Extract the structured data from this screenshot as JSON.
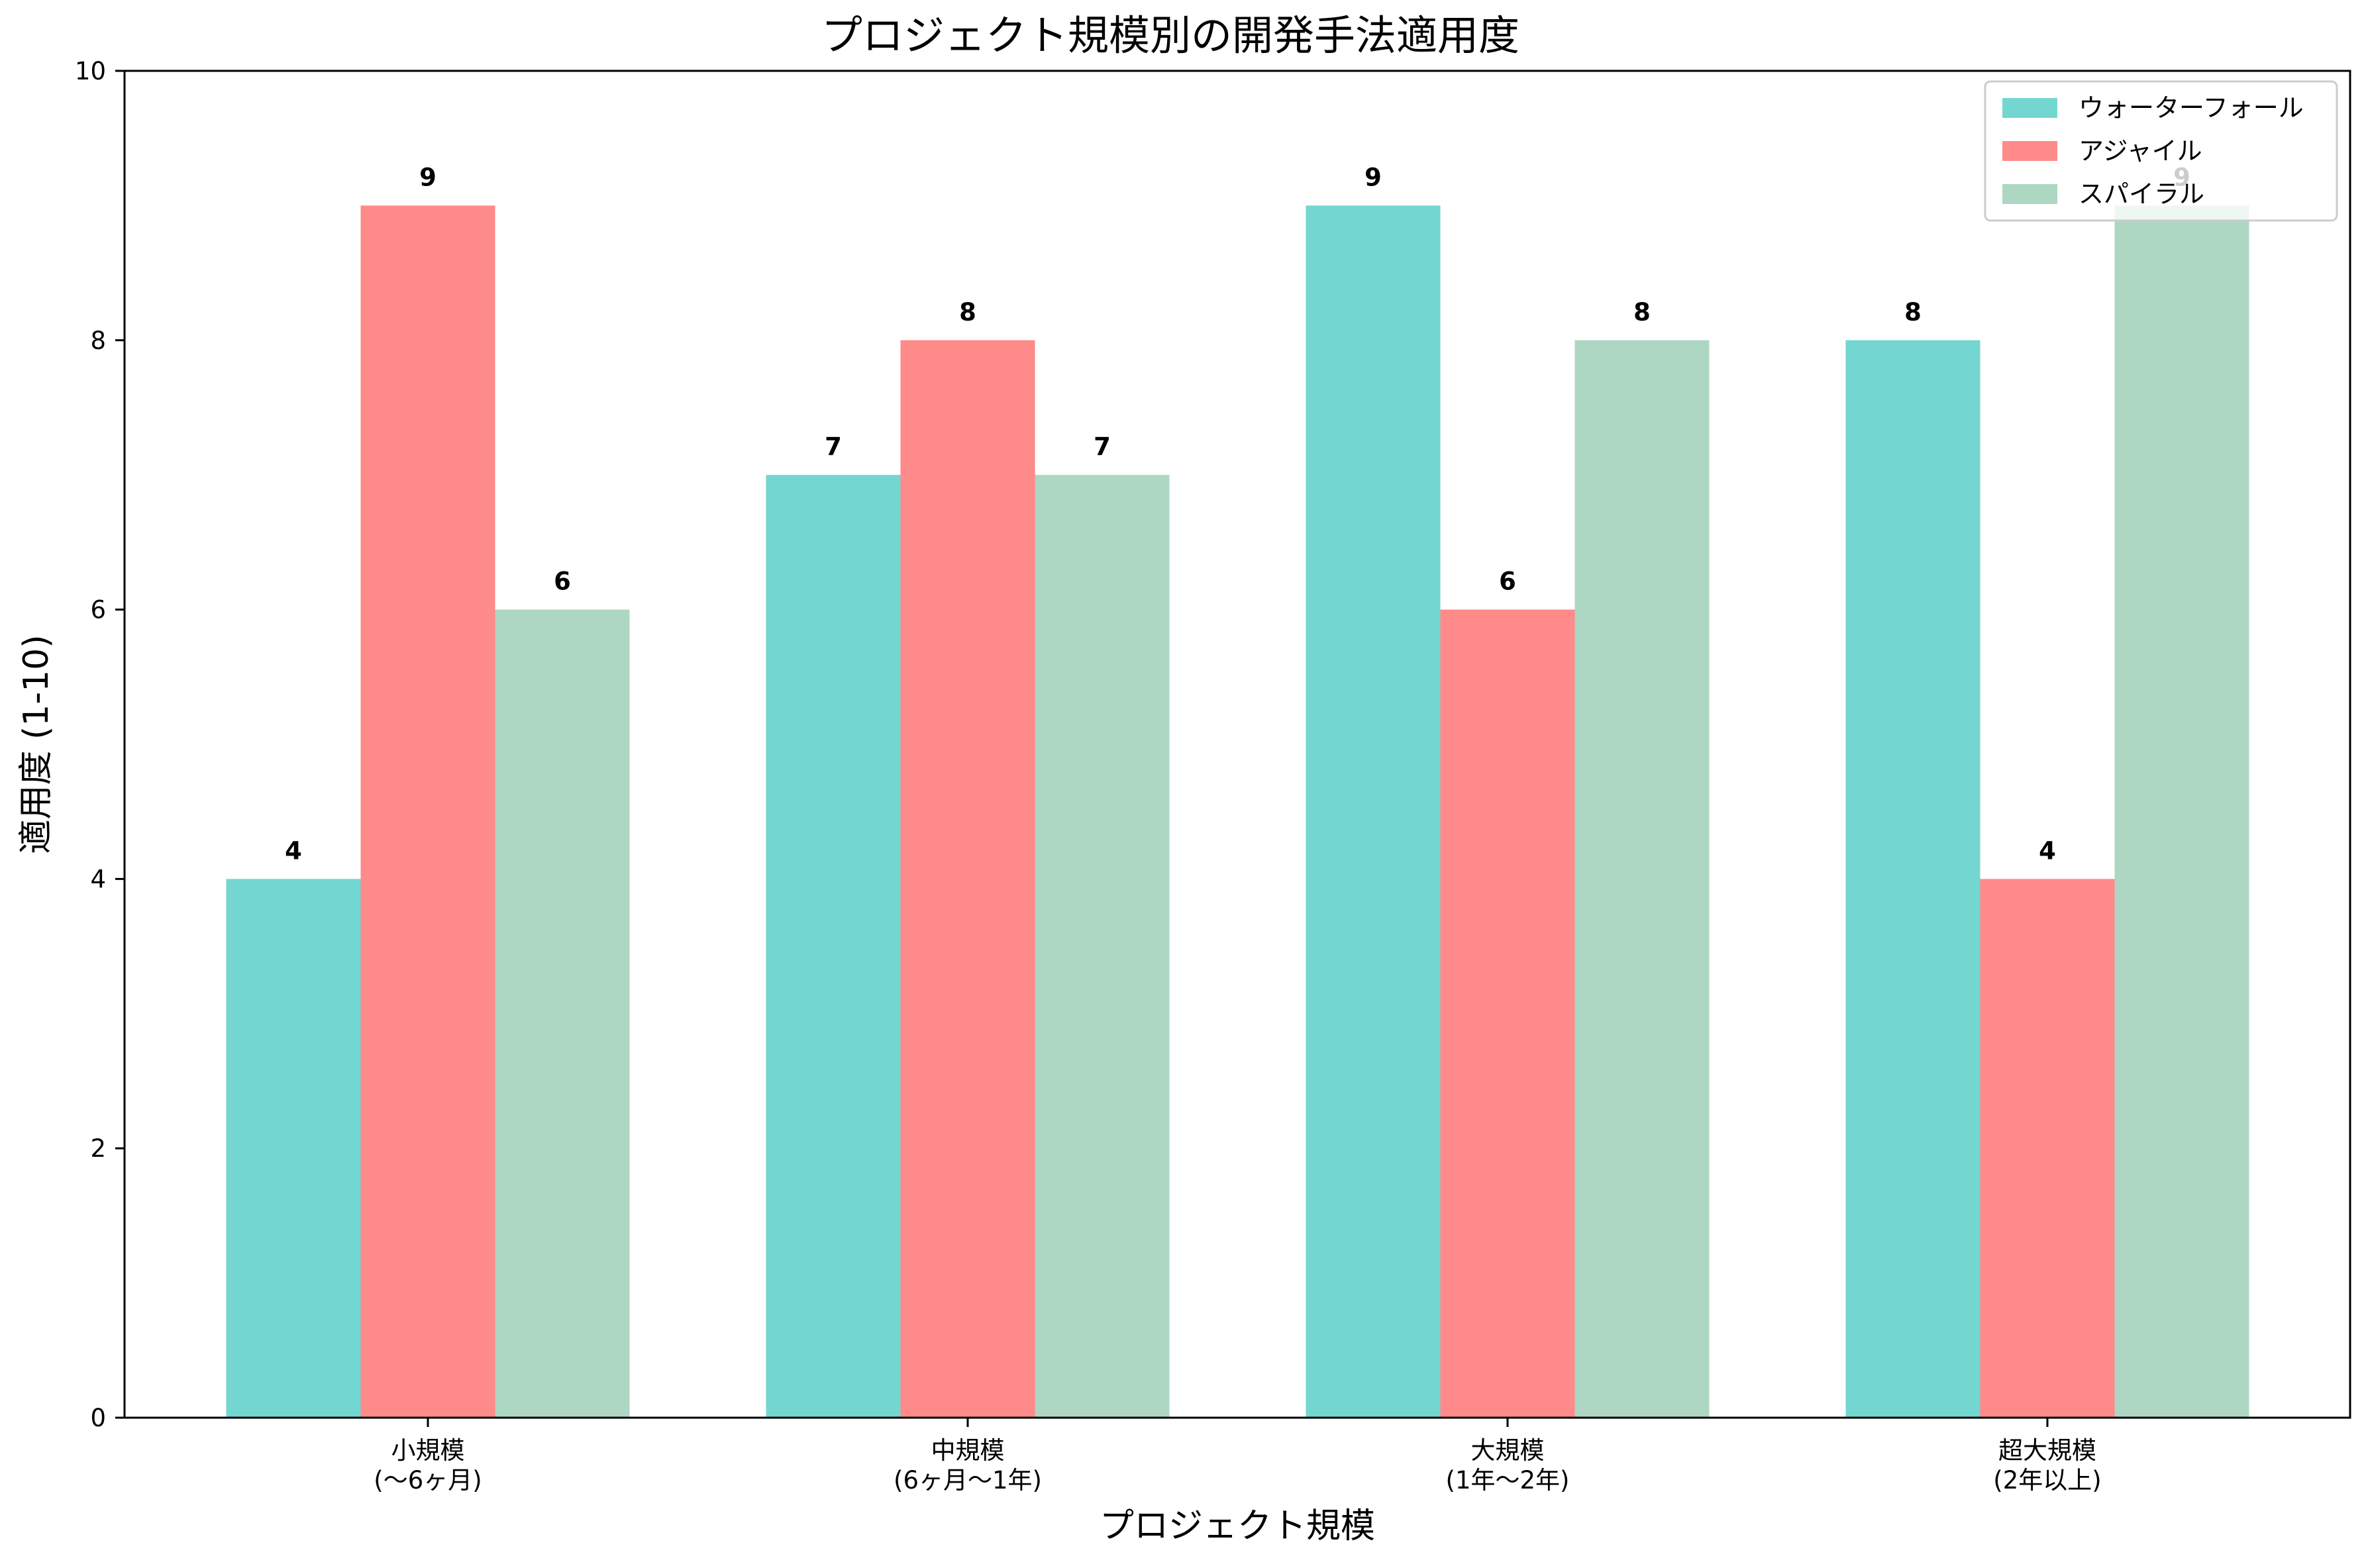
{
  "chart_data": {
    "type": "bar",
    "title": "プロジェクト規模別の開発手法適用度",
    "xlabel": "プロジェクト規模",
    "ylabel": "適用度 (1-10)",
    "ylim": [
      0,
      10
    ],
    "yticks": [
      0,
      2,
      4,
      6,
      8,
      10
    ],
    "grid": false,
    "legend_position": "top-right",
    "categories": [
      [
        "小規模",
        "(〜6ヶ月)"
      ],
      [
        "中規模",
        "(6ヶ月〜1年)"
      ],
      [
        "大規模",
        "(1年〜2年)"
      ],
      [
        "超大規模",
        "(2年以上)"
      ]
    ],
    "series": [
      {
        "name": "ウォーターフォール",
        "color": "#74d6d0",
        "values": [
          4,
          7,
          9,
          8
        ]
      },
      {
        "name": "アジャイル",
        "color": "#ff8a8a",
        "values": [
          9,
          8,
          6,
          4
        ]
      },
      {
        "name": "スパイラル",
        "color": "#add7c3",
        "values": [
          6,
          7,
          8,
          9
        ]
      }
    ]
  }
}
